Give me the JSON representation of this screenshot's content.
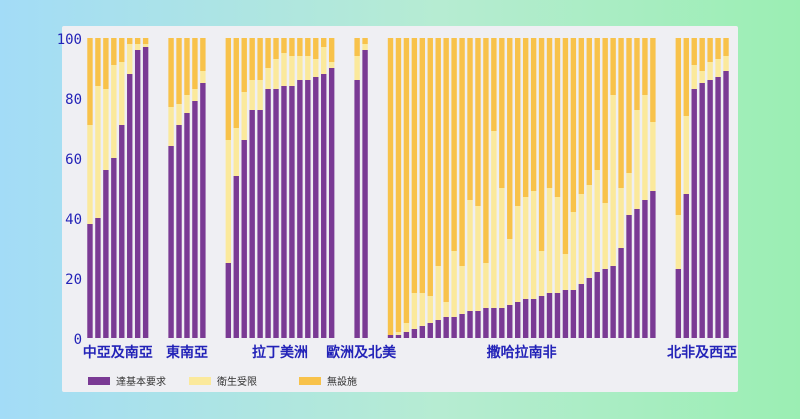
{
  "colors": {
    "basic": "#7a3a94",
    "limited": "#fbe99c",
    "none": "#f8c24a",
    "axis_text": "#2323b8",
    "panel": "#efeff3"
  },
  "chart_data": {
    "type": "bar",
    "stacked": true,
    "title": "",
    "xlabel": "",
    "ylabel": "",
    "ylim": [
      0,
      100
    ],
    "yticks": [
      0,
      20,
      40,
      60,
      80,
      100
    ],
    "grid": false,
    "legend_position": "bottom-left",
    "series_names": [
      "達基本要求",
      "衛生受限",
      "無設施"
    ],
    "groups": [
      {
        "label": "中亞及南亞",
        "basic": [
          38,
          40,
          56,
          60,
          71,
          88,
          96,
          97
        ],
        "limited": [
          33,
          44,
          27,
          31,
          21,
          10,
          2,
          1
        ]
      },
      {
        "label": "東南亞",
        "basic": [
          64,
          71,
          75,
          79,
          85
        ],
        "limited": [
          13,
          7,
          6,
          4,
          4
        ]
      },
      {
        "label": "拉丁美洲",
        "basic": [
          25,
          54,
          66,
          76,
          76,
          83,
          83,
          84,
          84,
          86,
          86,
          87,
          88,
          90
        ],
        "limited": [
          41,
          16,
          16,
          10,
          10,
          7,
          10,
          11,
          10,
          8,
          8,
          6,
          9,
          2
        ]
      },
      {
        "label": "歐洲及北美",
        "basic": [
          86,
          96
        ],
        "limited": [
          8,
          2
        ]
      },
      {
        "label": "撒哈拉南非",
        "basic": [
          1,
          1,
          2,
          3,
          4,
          5,
          6,
          7,
          7,
          8,
          9,
          9,
          10,
          10,
          10,
          11,
          12,
          13,
          13,
          14,
          15,
          15,
          16,
          16,
          18,
          20,
          22,
          23,
          24,
          30,
          41,
          43,
          46,
          49
        ],
        "limited": [
          0,
          1,
          3,
          12,
          11,
          9,
          18,
          5,
          22,
          16,
          37,
          35,
          15,
          59,
          40,
          22,
          32,
          34,
          36,
          15,
          35,
          32,
          12,
          26,
          30,
          31,
          34,
          22,
          57,
          20,
          14,
          33,
          35,
          23
        ]
      },
      {
        "label": "北非及西亞",
        "basic": [
          23,
          48,
          83,
          85,
          86,
          87,
          89
        ],
        "limited": [
          18,
          26,
          8,
          4,
          6,
          6,
          5
        ]
      }
    ],
    "legend": [
      "達基本要求",
      "衛生受限",
      "無設施"
    ]
  }
}
